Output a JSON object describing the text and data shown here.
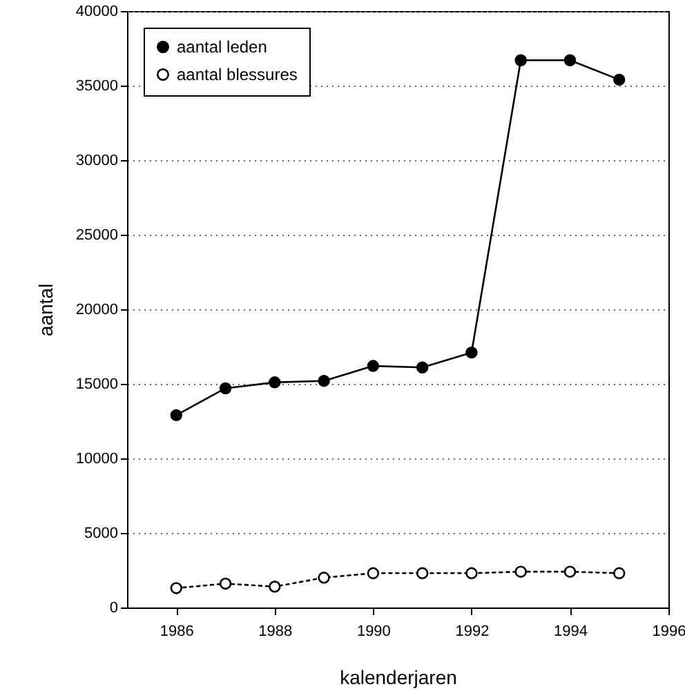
{
  "chart_data": {
    "type": "line",
    "xlabel": "kalenderjaren",
    "ylabel": "aantal",
    "x": [
      1986,
      1987,
      1988,
      1989,
      1990,
      1991,
      1992,
      1993,
      1994,
      1995
    ],
    "series": [
      {
        "name": "aantal leden",
        "color": "#000000",
        "line_style": "solid",
        "marker": "circle",
        "values": [
          12900,
          14700,
          15100,
          15200,
          16200,
          16100,
          17100,
          36700,
          36700,
          35400
        ]
      },
      {
        "name": "aantal blessures",
        "color": "#000000",
        "line_style": "dotted",
        "marker": "circle",
        "values": [
          1300,
          1600,
          1400,
          2000,
          2300,
          2300,
          2300,
          2400,
          2400,
          2300
        ]
      }
    ],
    "xlim": [
      1985,
      1996
    ],
    "xticks": [
      1986,
      1988,
      1990,
      1992,
      1994,
      1996
    ],
    "ylim": [
      0,
      40000
    ],
    "yticks": [
      0,
      5000,
      10000,
      15000,
      20000,
      25000,
      30000,
      35000,
      40000
    ],
    "grid": "y",
    "legend": "top left"
  }
}
